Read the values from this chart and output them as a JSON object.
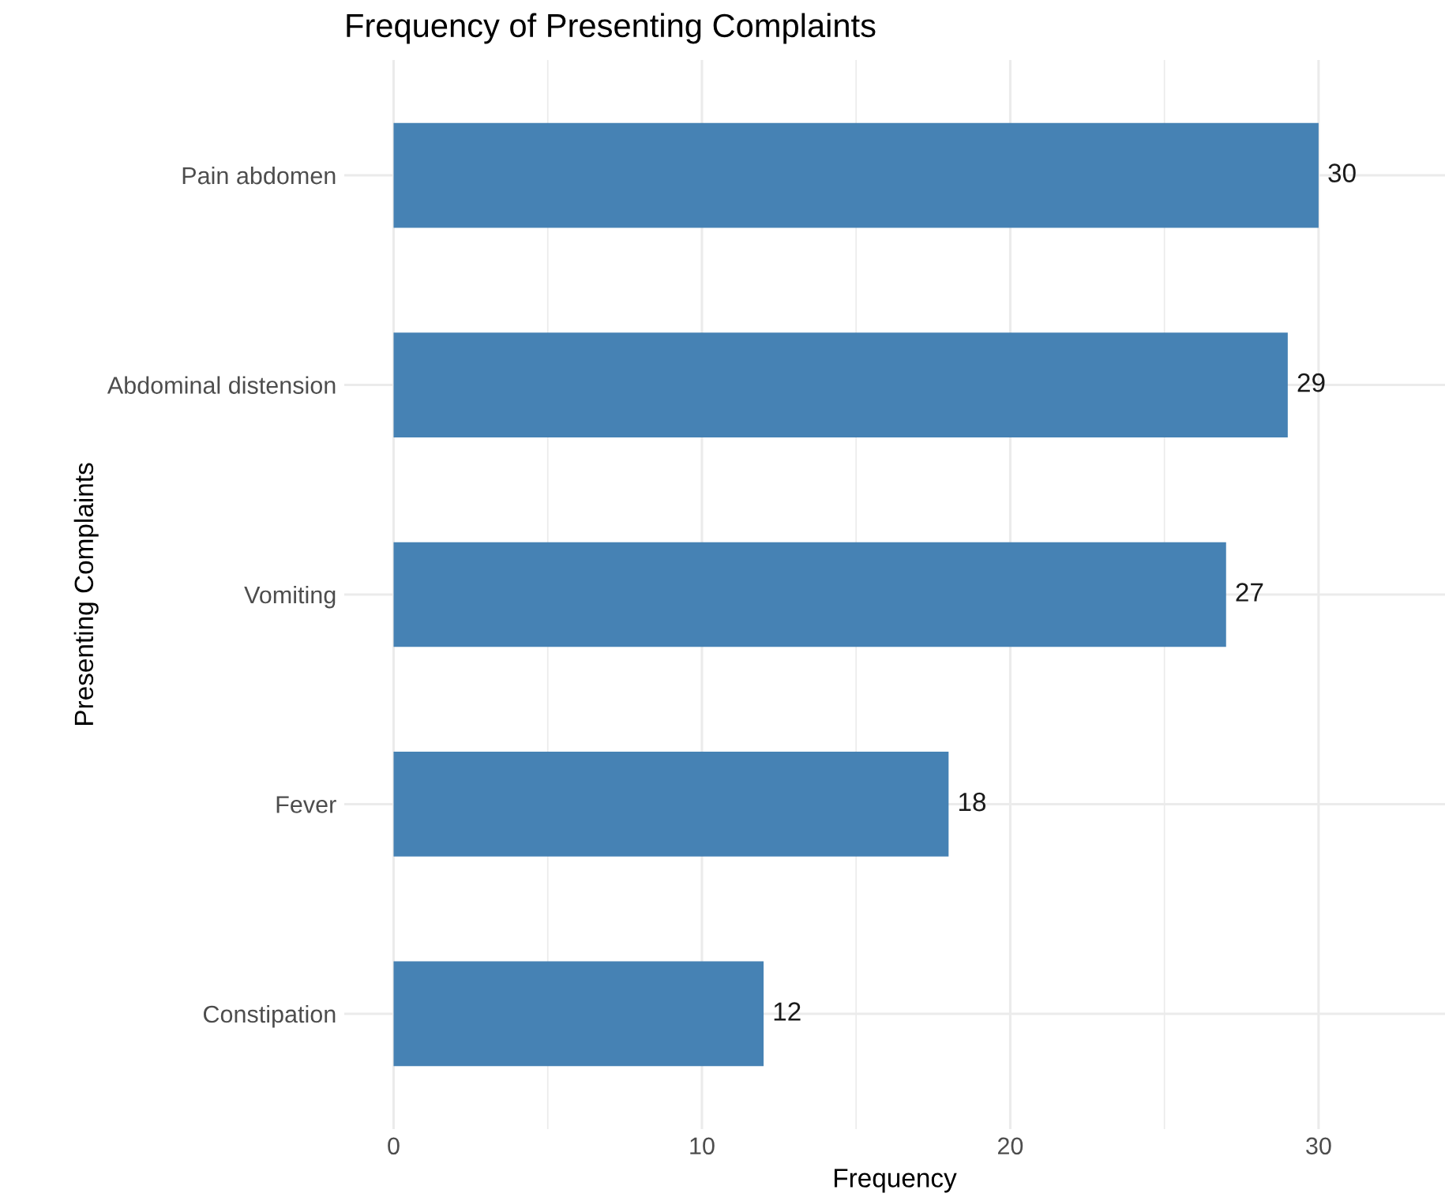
{
  "chart_data": {
    "type": "bar",
    "orientation": "horizontal",
    "title": "Frequency of Presenting Complaints",
    "xlabel": "Frequency",
    "ylabel": "Presenting Complaints",
    "categories": [
      "Pain abdomen",
      "Abdominal distension",
      "Vomiting",
      "Fever",
      "Constipation"
    ],
    "values": [
      30,
      29,
      27,
      18,
      12
    ],
    "color": "#4682b4",
    "data_labels": true,
    "xlim": [
      -1.6,
      34.1
    ],
    "xticks": [
      0,
      {
        "value": 5,
        "label": null
      },
      10,
      {
        "value": 15,
        "label": null
      },
      20,
      {
        "value": 25,
        "label": null
      },
      30
    ],
    "grid": true
  }
}
